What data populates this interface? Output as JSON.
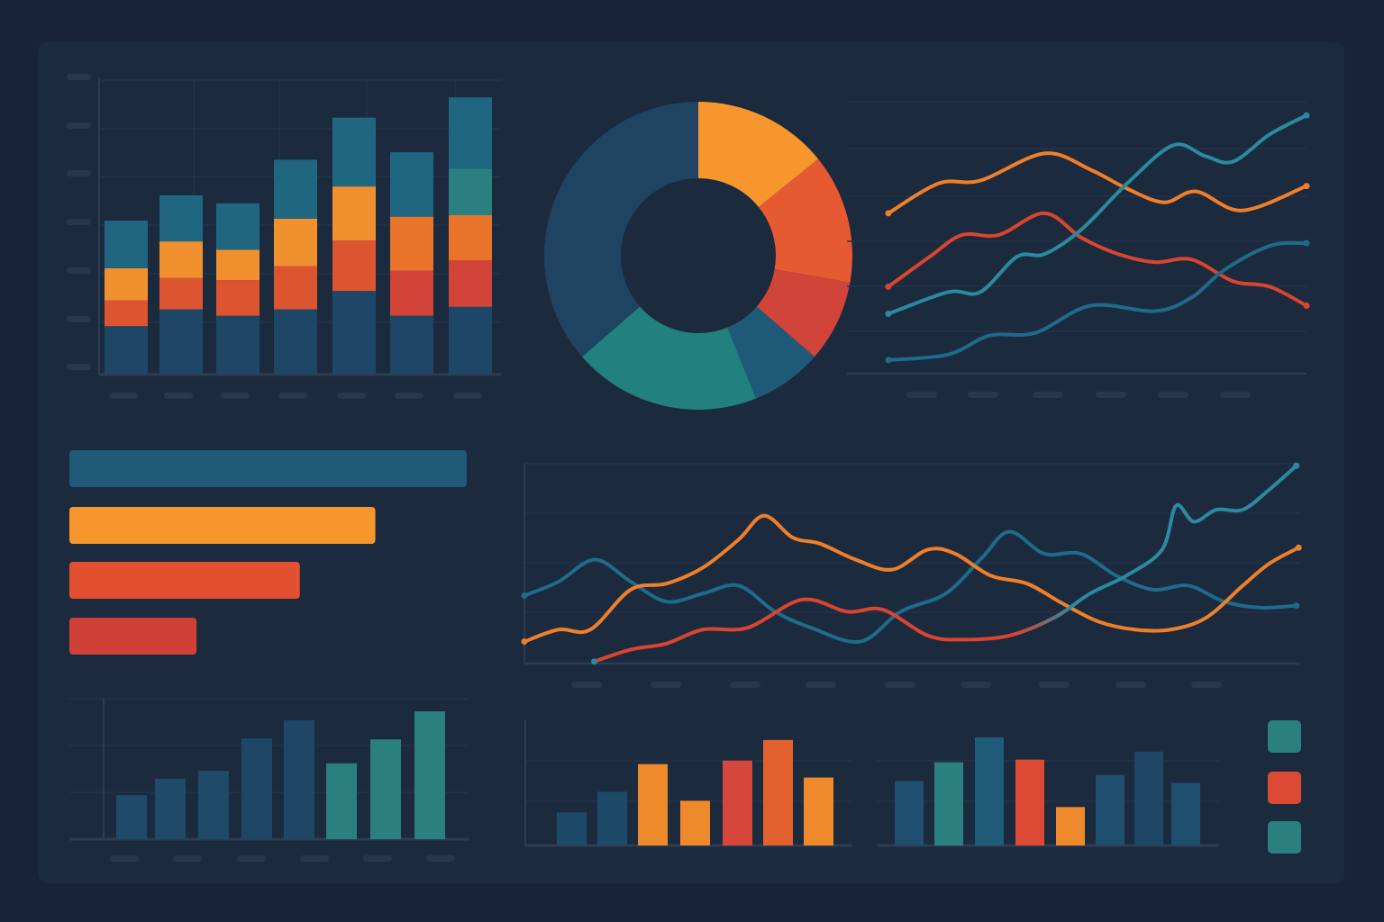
{
  "colors": {
    "background": "#18233a",
    "panel": "#1c2a3e",
    "axis": "#2e3c51",
    "grid": "#24324a",
    "placeholder": "#2a374b"
  },
  "chart_data": [
    {
      "id": "stacked-bar",
      "type": "bar",
      "stacked": true,
      "categories": [
        "",
        "",
        "",
        "",
        "",
        "",
        ""
      ],
      "ylim": [
        0,
        60
      ],
      "grid": true,
      "series": [
        {
          "values": [
            9.6,
            13,
            11.7,
            13,
            16.7,
            11.7,
            13.5
          ],
          "colors": [
            "#1e4767",
            "#1e4767",
            "#1e4767",
            "#1e4767",
            "#1e4767",
            "#1e4767",
            "#1e4767"
          ]
        },
        {
          "values": [
            5.2,
            6.3,
            7.2,
            8.7,
            10.2,
            9.1,
            9.4
          ],
          "colors": [
            "#dc5430",
            "#dc5430",
            "#dc5430",
            "#dc5430",
            "#dc5430",
            "#d2443a",
            "#d2443a"
          ]
        },
        {
          "values": [
            6.5,
            7.4,
            6.1,
            9.6,
            10.9,
            10.9,
            9.1
          ],
          "colors": [
            "#f0902e",
            "#f0902e",
            "#f0902e",
            "#f0902e",
            "#f0902e",
            "#e8742c",
            "#e8742c"
          ]
        },
        {
          "values": [
            0,
            0,
            0,
            0,
            0,
            0,
            9.4
          ],
          "colors": [
            "#2a8080",
            "#2a8080",
            "#2a8080",
            "#2a8080",
            "#2a8080",
            "#2a8080",
            "#2a8080"
          ]
        },
        {
          "values": [
            9.6,
            9.3,
            9.4,
            11.9,
            13.9,
            13,
            14.4
          ],
          "colors": [
            "#1f6680",
            "#1f6680",
            "#1f6680",
            "#1f6680",
            "#1f6680",
            "#1f6680",
            "#1f6680"
          ]
        }
      ]
    },
    {
      "id": "donut",
      "type": "pie",
      "donut": true,
      "values": [
        14.2,
        13.6,
        8.6,
        7.5,
        19.7,
        36.4
      ],
      "colors": [
        "#f7962c",
        "#e65a32",
        "#d04439",
        "#1e5a78",
        "#22807e",
        "#1f4462"
      ]
    },
    {
      "id": "line-top",
      "type": "line",
      "xlim": [
        0,
        100
      ],
      "ylim": [
        0,
        100
      ],
      "grid": true,
      "series": [
        {
          "color": "#f07f2a",
          "x": [
            9,
            20,
            29,
            43,
            53,
            61,
            69,
            76,
            86,
            100
          ],
          "y": [
            59,
            70,
            71,
            81,
            75,
            68,
            63,
            67,
            60,
            69
          ]
        },
        {
          "color": "#d9452f",
          "x": [
            9,
            18,
            25,
            33,
            43,
            51,
            59,
            67,
            75,
            84,
            92,
            100
          ],
          "y": [
            32,
            43,
            51,
            51,
            59,
            50,
            44,
            41,
            42,
            34,
            32,
            25
          ]
        },
        {
          "color": "#2a8aa0",
          "x": [
            9,
            22,
            29,
            37,
            43,
            51,
            61,
            71,
            78,
            84,
            92,
            100
          ],
          "y": [
            22,
            30,
            30,
            43,
            44,
            53,
            70,
            84,
            80,
            78,
            88,
            95
          ]
        },
        {
          "color": "#1f6b8a",
          "x": [
            9,
            22,
            31,
            41,
            53,
            67,
            75,
            82,
            92,
            100
          ],
          "y": [
            5,
            7,
            14,
            15,
            25,
            23,
            28,
            38,
            47,
            48
          ]
        }
      ]
    },
    {
      "id": "hbar",
      "type": "bar",
      "orientation": "horizontal",
      "xlim": [
        0,
        100
      ],
      "values": [
        100,
        77,
        58,
        32
      ],
      "colors": [
        "#1f5a78",
        "#f7962c",
        "#e2502f",
        "#cf4137"
      ]
    },
    {
      "id": "line-middle",
      "type": "line",
      "xlim": [
        0,
        100
      ],
      "ylim": [
        0,
        100
      ],
      "grid": true,
      "series": [
        {
          "color": "#1f6b8a",
          "x": [
            0,
            4.4,
            9.1,
            13.7,
            18.3,
            23,
            27.6,
            32.3,
            36.9,
            43.3,
            48.5,
            54.3,
            59,
            62.5,
            67,
            71.7,
            76.3,
            81,
            85.6,
            90.2,
            94.9,
            99.5
          ],
          "y": [
            34,
            41,
            52,
            41,
            31,
            35,
            39,
            26,
            18,
            11,
            26,
            35,
            53,
            66,
            55,
            55,
            44,
            37,
            39,
            31,
            28,
            29
          ]
        },
        {
          "color": "#f07f2a",
          "x": [
            0,
            4.4,
            8.5,
            13.7,
            18.3,
            23,
            27.6,
            30.9,
            34.6,
            38.1,
            42.7,
            47.4,
            52,
            55.5,
            60.1,
            64.8,
            69.4,
            74,
            78.7,
            83.3,
            87.9,
            92.6,
            96,
            99.8
          ],
          "y": [
            11,
            17,
            17,
            37,
            40,
            48,
            62,
            74,
            63,
            60,
            52,
            47,
            57,
            55,
            44,
            40,
            30,
            21,
            17,
            17,
            23,
            39,
            50,
            58
          ]
        },
        {
          "color": "#d9452f",
          "color_end": "#2a8aa0",
          "x": [
            9,
            13.7,
            18.3,
            23,
            28.8,
            35.8,
            41.6,
            46.2,
            52,
            56.6,
            62.5,
            68.3,
            72.9,
            77.6,
            82.2,
            84,
            86.3,
            89.2,
            92.6,
            96,
            99.5
          ],
          "y": [
            1,
            7,
            10,
            17,
            18,
            32,
            26,
            27,
            14,
            12,
            14,
            23,
            35,
            44,
            57,
            79,
            71,
            77,
            77,
            87,
            99
          ]
        }
      ]
    },
    {
      "id": "bar-bottom-left",
      "type": "bar",
      "ylim": [
        0,
        30
      ],
      "grid": true,
      "values": [
        9.4,
        12.9,
        14.6,
        21.5,
        25.4,
        16.2,
        21.3,
        27.3
      ],
      "colors": [
        "#1f4a68",
        "#1f4a68",
        "#1f4a68",
        "#1e4766",
        "#1e4766",
        "#2a7f7f",
        "#2a7f7f",
        "#2a7f7f"
      ]
    },
    {
      "id": "bar-bottom-middle",
      "type": "bar",
      "ylim": [
        0,
        140
      ],
      "grid": true,
      "values": [
        37,
        60,
        91,
        50,
        95,
        118,
        76
      ],
      "colors": [
        "#1e4a6a",
        "#1e4a6a",
        "#ef8a2c",
        "#ef8a2c",
        "#d5473a",
        "#e3602f",
        "#ef8a2c"
      ]
    },
    {
      "id": "bar-bottom-right",
      "type": "bar",
      "ylim": [
        0,
        140
      ],
      "grid": true,
      "values": [
        72,
        93,
        121,
        96,
        43,
        79,
        105,
        70
      ],
      "colors": [
        "#1f4f6e",
        "#2a7f7f",
        "#1f5c7a",
        "#dc4a35",
        "#ef8a2c",
        "#1f4f6e",
        "#1e4766",
        "#1f4f6e"
      ]
    },
    {
      "id": "legend",
      "type": "legend",
      "swatches": [
        "#2a7f7f",
        "#dc4a35",
        "#2a7f7f"
      ]
    }
  ]
}
